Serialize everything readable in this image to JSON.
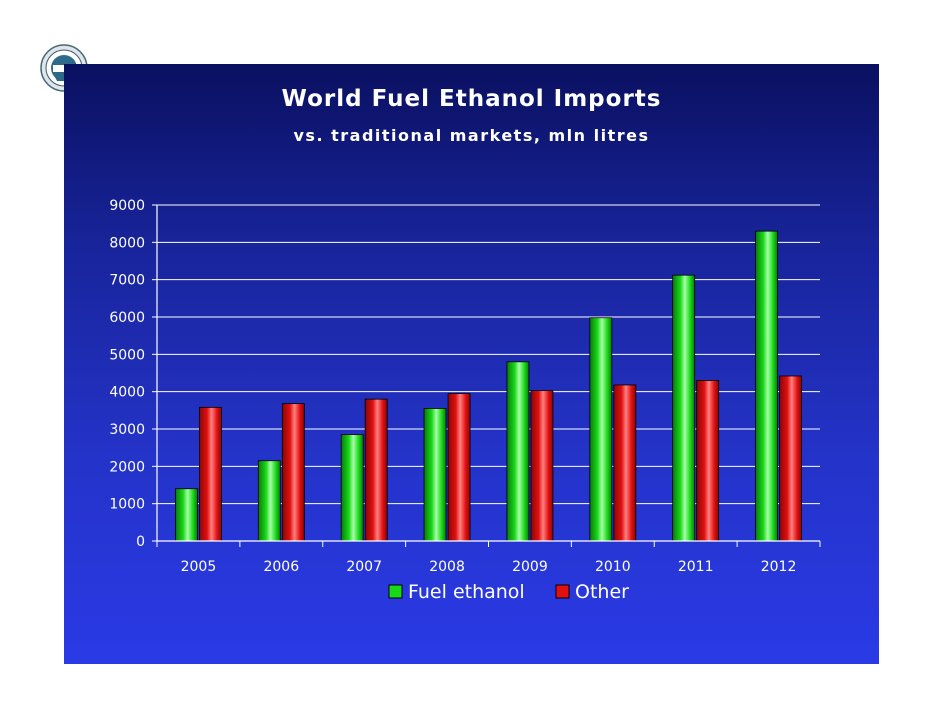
{
  "slide": {
    "title": "World Fuel Ethanol Imports",
    "subtitle": "vs. traditional markets, mln litres"
  },
  "logo": {
    "name": "organization-seal"
  },
  "colors": {
    "fuel_ethanol": "#18d818",
    "other": "#e01010",
    "gridline": "#ffffff",
    "axis": "#ffffff"
  },
  "chart_data": {
    "type": "bar",
    "title": "World Fuel Ethanol Imports",
    "subtitle": "vs. traditional markets, mln litres",
    "xlabel": "",
    "ylabel": "",
    "categories": [
      "2005",
      "2006",
      "2007",
      "2008",
      "2009",
      "2010",
      "2011",
      "2012"
    ],
    "series": [
      {
        "name": "Fuel ethanol",
        "color": "#18d818",
        "values": [
          1400,
          2150,
          2850,
          3550,
          4800,
          5980,
          7120,
          8300
        ]
      },
      {
        "name": "Other",
        "color": "#e01010",
        "values": [
          3580,
          3680,
          3800,
          3950,
          4030,
          4180,
          4300,
          4420
        ]
      }
    ],
    "ylim": [
      0,
      9000
    ],
    "yticks": [
      "0",
      "1000",
      "2000",
      "3000",
      "4000",
      "5000",
      "6000",
      "7000",
      "8000",
      "9000"
    ],
    "grid": true,
    "legend": "bottom-center"
  }
}
